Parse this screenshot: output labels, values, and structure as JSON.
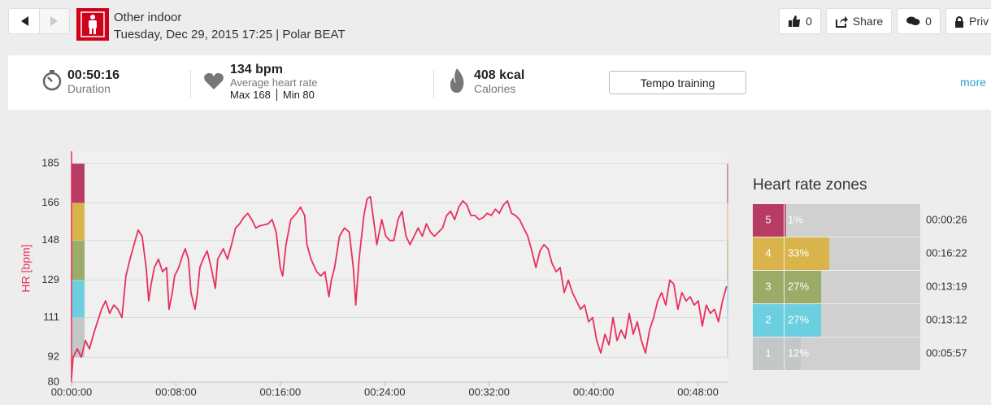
{
  "header": {
    "sport": "Other indoor",
    "subtitle": "Tuesday, Dec 29, 2015 17:25 | Polar BEAT",
    "likes": 0,
    "share": "Share",
    "comments": 0,
    "privacy": "Priv"
  },
  "summary": {
    "duration": "00:50:16",
    "duration_label": "Duration",
    "avg_hr": "134 bpm",
    "avg_hr_label": "Average heart rate",
    "max": "Max 168",
    "min": "Min 80",
    "calories": "408 kcal",
    "calories_label": "Calories",
    "training": "Tempo training",
    "more": "more"
  },
  "chart_data": [
    {
      "type": "line",
      "y_label": "HR [bpm]",
      "grid": true,
      "xlim": [
        0,
        50.27
      ],
      "ylim": [
        80,
        190
      ],
      "xticks": [
        {
          "value": 0,
          "label": "00:00:00"
        },
        {
          "value": 8,
          "label": "00:08:00"
        },
        {
          "value": 16,
          "label": "00:16:00"
        },
        {
          "value": 24,
          "label": "00:24:00"
        },
        {
          "value": 32,
          "label": "00:32:00"
        },
        {
          "value": 40,
          "label": "00:40:00"
        },
        {
          "value": 48,
          "label": "00:48:00"
        }
      ],
      "yticks": [
        80,
        92,
        111,
        129,
        148,
        166,
        185
      ],
      "x": [
        0,
        0.12,
        0.44,
        0.75,
        1.06,
        1.37,
        1.68,
        1.99,
        2.3,
        2.61,
        2.92,
        3.24,
        3.55,
        3.86,
        4.17,
        4.48,
        4.79,
        5.1,
        5.41,
        5.72,
        5.91,
        6.1,
        6.35,
        6.66,
        6.97,
        7.28,
        7.47,
        7.72,
        7.9,
        8.21,
        8.52,
        8.71,
        8.96,
        9.15,
        9.46,
        9.65,
        9.83,
        10.08,
        10.39,
        10.7,
        11.02,
        11.2,
        11.63,
        11.95,
        12.26,
        12.57,
        12.88,
        13.19,
        13.5,
        13.81,
        14.12,
        14.43,
        15.06,
        15.37,
        15.68,
        15.99,
        16.18,
        16.43,
        16.8,
        17.23,
        17.54,
        17.86,
        18.04,
        18.35,
        18.79,
        19.1,
        19.41,
        19.72,
        19.91,
        20.16,
        20.53,
        20.91,
        21.28,
        21.59,
        21.78,
        22.03,
        22.4,
        22.65,
        22.9,
        23.14,
        23.39,
        23.77,
        24.08,
        24.39,
        24.7,
        25.01,
        25.32,
        25.63,
        25.94,
        26.25,
        26.56,
        26.88,
        27.19,
        27.5,
        27.81,
        28.12,
        28.43,
        28.74,
        29.05,
        29.36,
        29.67,
        29.98,
        30.29,
        30.6,
        30.91,
        31.22,
        31.54,
        31.85,
        32.16,
        32.47,
        32.78,
        33.09,
        33.4,
        33.71,
        34.02,
        34.33,
        34.64,
        34.96,
        35.27,
        35.58,
        35.89,
        36.2,
        36.51,
        36.82,
        37.13,
        37.44,
        37.75,
        38.07,
        38.38,
        38.69,
        39,
        39.31,
        39.62,
        39.93,
        40.24,
        40.55,
        40.87,
        41.18,
        41.49,
        41.8,
        42.11,
        42.42,
        42.73,
        43.04,
        43.35,
        43.66,
        43.98,
        44.29,
        44.6,
        44.91,
        45.22,
        45.53,
        45.84,
        46.15,
        46.46,
        46.77,
        47.09,
        47.4,
        47.71,
        48.02,
        48.33,
        48.64,
        48.95,
        49.26,
        49.57,
        49.88,
        50.19
      ],
      "series": [
        {
          "color": "#e8305c",
          "values": [
            82,
            92,
            96,
            92,
            100,
            96,
            103,
            109,
            115,
            119,
            113,
            117,
            115,
            111,
            131,
            139,
            146,
            153,
            150,
            135,
            119,
            127,
            135,
            139,
            133,
            135,
            115,
            123,
            131,
            135,
            141,
            144,
            139,
            123,
            115,
            123,
            135,
            139,
            143,
            135,
            125,
            139,
            144,
            139,
            146,
            154,
            156,
            159,
            161,
            158,
            154,
            155,
            156,
            158,
            152,
            135,
            131,
            146,
            158,
            161,
            164,
            160,
            146,
            139,
            133,
            131,
            133,
            121,
            129,
            135,
            150,
            154,
            152,
            135,
            117,
            139,
            160,
            168,
            169,
            158,
            146,
            158,
            150,
            148,
            148,
            158,
            162,
            150,
            146,
            150,
            154,
            150,
            156,
            152,
            150,
            152,
            154,
            160,
            162,
            158,
            164,
            167,
            165,
            160,
            160,
            158,
            159,
            161,
            160,
            163,
            161,
            165,
            167,
            161,
            160,
            158,
            154,
            150,
            143,
            135,
            143,
            146,
            144,
            137,
            133,
            135,
            123,
            129,
            123,
            119,
            115,
            117,
            109,
            111,
            100,
            94,
            103,
            98,
            111,
            100,
            105,
            101,
            113,
            103,
            109,
            100,
            94,
            105,
            111,
            119,
            123,
            117,
            129,
            127,
            115,
            123,
            119,
            121,
            117,
            119,
            107,
            117,
            113,
            115,
            109,
            119,
            126
          ]
        }
      ]
    },
    {
      "type": "bar",
      "title": "Heart rate zones",
      "xlim": [
        0,
        100
      ],
      "categories": [
        "5",
        "4",
        "3",
        "2",
        "1"
      ],
      "values": [
        1,
        33,
        27,
        27,
        12
      ],
      "value_labels": [
        "1%",
        "33%",
        "27%",
        "27%",
        "12%"
      ],
      "durations": [
        "00:00:26",
        "00:16:22",
        "00:13:19",
        "00:13:12",
        "00:05:57"
      ],
      "colors": [
        "#b83b64",
        "#d9b44a",
        "#9bab68",
        "#6ccfdf",
        "#c4c7c7"
      ]
    }
  ]
}
